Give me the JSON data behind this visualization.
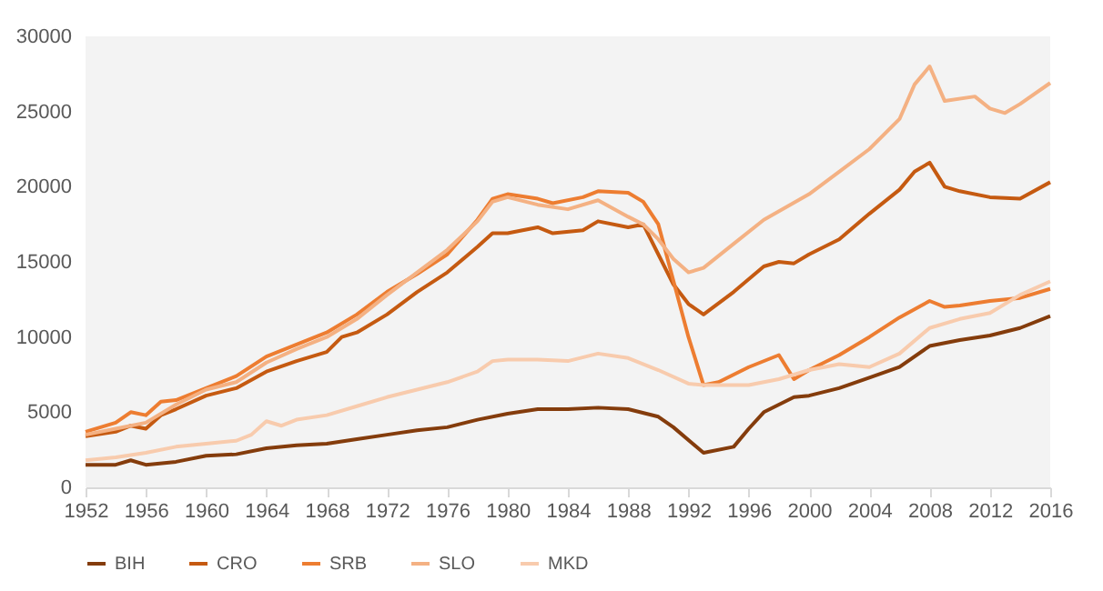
{
  "chart_data": {
    "type": "line",
    "xlim": [
      1952,
      2016
    ],
    "xticks": [
      1952,
      1956,
      1960,
      1964,
      1968,
      1972,
      1976,
      1980,
      1984,
      1988,
      1992,
      1996,
      2000,
      2004,
      2008,
      2012,
      2016
    ],
    "ylim": [
      0,
      30000
    ],
    "yticks": [
      0,
      5000,
      10000,
      15000,
      20000,
      25000,
      30000
    ],
    "grid": false,
    "legend": "bottom",
    "marker": "none",
    "line_style": "solid",
    "series": [
      {
        "name": "BIH",
        "color": "#843c0c",
        "x": [
          1952,
          1954,
          1955,
          1956,
          1958,
          1960,
          1962,
          1964,
          1966,
          1968,
          1970,
          1972,
          1974,
          1976,
          1978,
          1980,
          1982,
          1984,
          1986,
          1988,
          1990,
          1991,
          1993,
          1995,
          1996,
          1997,
          1999,
          2000,
          2002,
          2004,
          2006,
          2008,
          2010,
          2012,
          2014,
          2016
        ],
        "values": [
          1500,
          1500,
          1800,
          1500,
          1700,
          2100,
          2200,
          2600,
          2800,
          2900,
          3200,
          3500,
          3800,
          4000,
          4500,
          4900,
          5200,
          5200,
          5300,
          5200,
          4700,
          4000,
          2300,
          2700,
          3900,
          5000,
          6000,
          6100,
          6600,
          7300,
          8000,
          9400,
          9800,
          10100,
          10600,
          11400
        ]
      },
      {
        "name": "CRO",
        "color": "#c55a11",
        "x": [
          1952,
          1954,
          1955,
          1956,
          1957,
          1958,
          1960,
          1962,
          1964,
          1966,
          1968,
          1969,
          1970,
          1972,
          1974,
          1976,
          1978,
          1979,
          1980,
          1982,
          1983,
          1985,
          1986,
          1988,
          1989,
          1990,
          1991,
          1992,
          1993,
          1995,
          1997,
          1998,
          1999,
          2000,
          2002,
          2004,
          2006,
          2007,
          2008,
          2009,
          2010,
          2012,
          2014,
          2016
        ],
        "values": [
          3400,
          3700,
          4100,
          3900,
          4800,
          5200,
          6100,
          6600,
          7700,
          8400,
          9000,
          10000,
          10300,
          11500,
          13000,
          14300,
          16000,
          16900,
          16900,
          17300,
          16900,
          17100,
          17700,
          17300,
          17500,
          15500,
          13500,
          12200,
          11500,
          13000,
          14700,
          15000,
          14900,
          15500,
          16500,
          18200,
          19800,
          21000,
          21600,
          20000,
          19700,
          19300,
          19200,
          20300
        ]
      },
      {
        "name": "SRB",
        "color": "#ed7d31",
        "x": [
          1952,
          1954,
          1955,
          1956,
          1957,
          1958,
          1960,
          1962,
          1964,
          1966,
          1968,
          1970,
          1972,
          1974,
          1976,
          1978,
          1979,
          1980,
          1982,
          1983,
          1985,
          1986,
          1988,
          1989,
          1990,
          1992,
          1993,
          1994,
          1996,
          1998,
          1999,
          2000,
          2002,
          2004,
          2006,
          2008,
          2009,
          2010,
          2012,
          2014,
          2016
        ],
        "values": [
          3700,
          4300,
          5000,
          4800,
          5700,
          5800,
          6600,
          7400,
          8700,
          9500,
          10300,
          11500,
          13000,
          14200,
          15500,
          17800,
          19200,
          19500,
          19200,
          18900,
          19300,
          19700,
          19600,
          19000,
          17500,
          10000,
          6800,
          7000,
          8000,
          8800,
          7200,
          7800,
          8800,
          10000,
          11300,
          12400,
          12000,
          12100,
          12400,
          12600,
          13200
        ]
      },
      {
        "name": "SLO",
        "color": "#f4b183",
        "x": [
          1952,
          1954,
          1956,
          1958,
          1960,
          1962,
          1964,
          1966,
          1968,
          1970,
          1972,
          1974,
          1976,
          1978,
          1979,
          1980,
          1982,
          1984,
          1986,
          1988,
          1989,
          1990,
          1991,
          1992,
          1993,
          1995,
          1997,
          2000,
          2002,
          2004,
          2006,
          2007,
          2008,
          2009,
          2011,
          2012,
          2013,
          2014,
          2016
        ],
        "values": [
          3500,
          3900,
          4300,
          5500,
          6500,
          7000,
          8300,
          9200,
          10000,
          11200,
          12800,
          14300,
          15800,
          17700,
          19000,
          19300,
          18800,
          18500,
          19100,
          18000,
          17500,
          16500,
          15200,
          14300,
          14600,
          16200,
          17800,
          19500,
          21000,
          22500,
          24500,
          26800,
          28000,
          25700,
          26000,
          25200,
          24900,
          25500,
          26900
        ]
      },
      {
        "name": "MKD",
        "color": "#f8cbad",
        "x": [
          1952,
          1954,
          1956,
          1958,
          1960,
          1962,
          1963,
          1964,
          1965,
          1966,
          1968,
          1970,
          1972,
          1974,
          1976,
          1978,
          1979,
          1980,
          1982,
          1984,
          1986,
          1988,
          1990,
          1992,
          1993,
          1996,
          1998,
          2000,
          2002,
          2004,
          2006,
          2008,
          2010,
          2012,
          2014,
          2016
        ],
        "values": [
          1800,
          2000,
          2300,
          2700,
          2900,
          3100,
          3500,
          4400,
          4100,
          4500,
          4800,
          5400,
          6000,
          6500,
          7000,
          7700,
          8400,
          8500,
          8500,
          8400,
          8900,
          8600,
          7800,
          6900,
          6800,
          6800,
          7200,
          7800,
          8200,
          8000,
          8900,
          10600,
          11200,
          11600,
          12800,
          13700
        ]
      }
    ]
  }
}
